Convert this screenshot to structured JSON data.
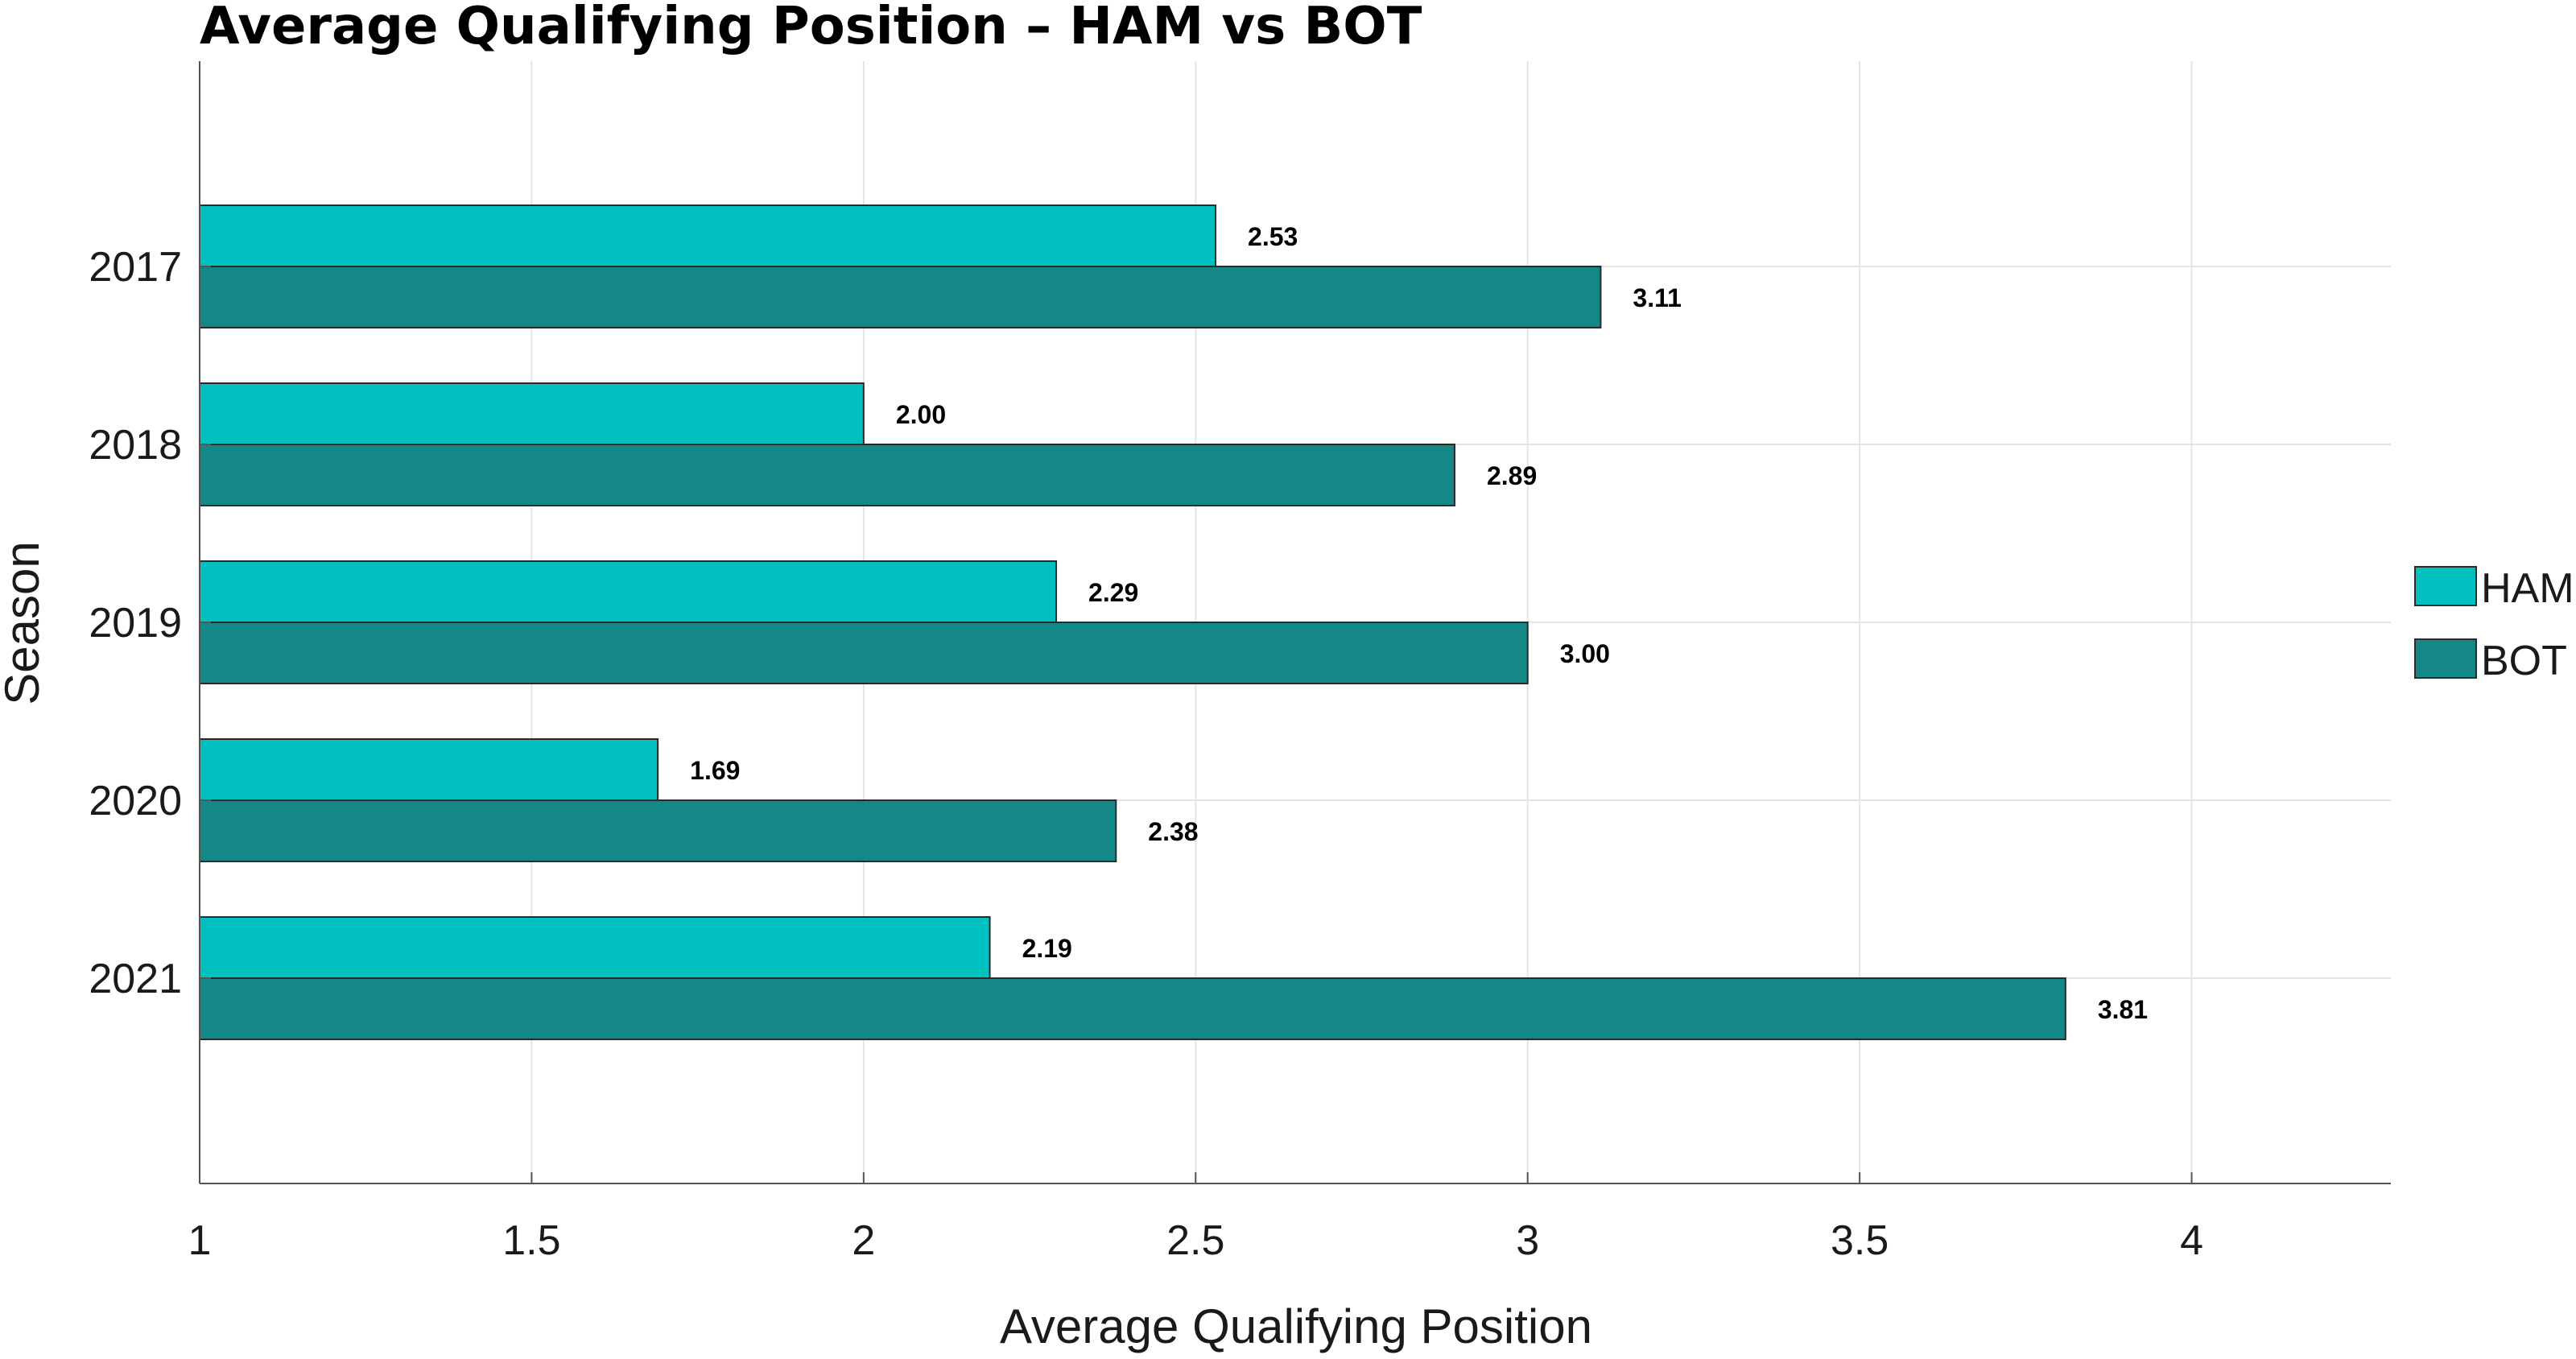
{
  "chart_data": {
    "type": "bar",
    "orientation": "horizontal",
    "title": "Average Qualifying Position – HAM vs BOT",
    "xlabel": "Average Qualifying Position",
    "ylabel": "Season",
    "categories": [
      "2017",
      "2018",
      "2019",
      "2020",
      "2021"
    ],
    "series": [
      {
        "name": "HAM",
        "color": "#00c0c0",
        "values": [
          2.53,
          2.0,
          2.29,
          1.69,
          2.19
        ],
        "labels": [
          "2.53",
          "2.00",
          "2.29",
          "1.69",
          "2.19"
        ]
      },
      {
        "name": "BOT",
        "color": "#148886",
        "values": [
          3.11,
          2.89,
          3.0,
          2.38,
          3.81
        ],
        "labels": [
          "3.11",
          "2.89",
          "3.00",
          "2.38",
          "3.81"
        ]
      }
    ],
    "xlim": [
      1,
      4.3
    ],
    "xticks": [
      1,
      1.5,
      2,
      2.5,
      3,
      3.5,
      4
    ],
    "xtick_labels": [
      "1",
      "1.5",
      "2",
      "2.5",
      "3",
      "3.5",
      "4"
    ],
    "grid": true,
    "legend_position": "right"
  }
}
